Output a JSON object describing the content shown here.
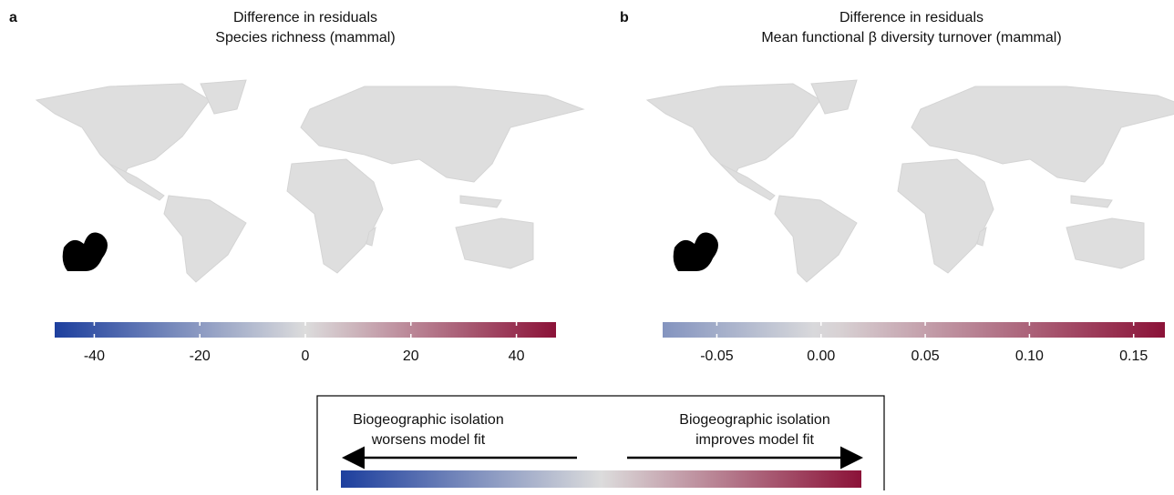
{
  "panels": [
    {
      "label": "a",
      "title": "Difference in residuals",
      "subtitle": "Species richness (mammal)",
      "colorbar": {
        "lim": [
          -47.5,
          47.5
        ],
        "ticks": [
          -40,
          -20,
          0,
          20,
          40
        ]
      }
    },
    {
      "label": "b",
      "title": "Difference in residuals",
      "subtitle": "Mean functional β diversity turnover (mammal)",
      "colorbar": {
        "lim": [
          -0.076,
          0.165
        ],
        "ticks": [
          -0.05,
          {
            "value": 0,
            "label": "0.00"
          },
          0.05,
          {
            "value": 0.1,
            "label": "0.10"
          },
          0.15
        ]
      }
    }
  ],
  "legend": {
    "left_line1": "Biogeographic isolation",
    "left_line2": "worsens model fit",
    "right_line1": "Biogeographic isolation",
    "right_line2": "improves model fit"
  }
}
